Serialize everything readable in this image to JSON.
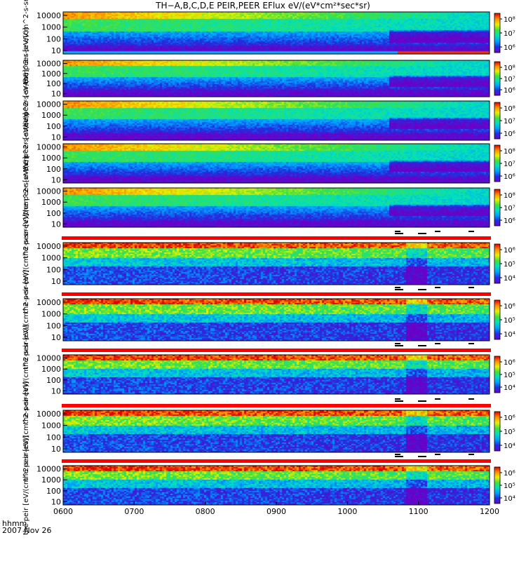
{
  "chart_data": {
    "type": "heatmap",
    "title": "TH−A,B,C,D,E PEIR,PEER EFlux eV/(eV*cm²*sec*sr)",
    "x_ticks": [
      "0600",
      "0700",
      "0800",
      "0900",
      "1000",
      "1100",
      "1200"
    ],
    "x_range": [
      "0600",
      "1200"
    ],
    "x_unit_label": "hhmm",
    "date_label": "2007 Nov 26",
    "y_scale": "log",
    "y_range": [
      5,
      20000
    ],
    "y_ticks": [
      10,
      100,
      1000,
      10000
    ],
    "y_tick_labels": [
      "10",
      "100",
      "1000",
      "10000"
    ],
    "colorbar_scale": "log",
    "panels": [
      {
        "name": "the peer",
        "ylabel": "the peer [eV/(cm^2-s-sr-eV)]",
        "cbar_ticks": [
          "10⁶",
          "10⁷",
          "10⁸"
        ]
      },
      {
        "name": "the peer",
        "ylabel": "the peer [eV/(cm^2-s-sr-eV)]",
        "cbar_ticks": [
          "10⁶",
          "10⁷",
          "10⁸"
        ]
      },
      {
        "name": "the peer",
        "ylabel": "the peer [eV/(cm^2-s-sr-eV)]",
        "cbar_ticks": [
          "10⁶",
          "10⁷",
          "10⁸"
        ]
      },
      {
        "name": "the peer",
        "ylabel": "the peer [eV/(cm^2-s-sr-eV)]",
        "cbar_ticks": [
          "10⁶",
          "10⁷",
          "10⁸"
        ]
      },
      {
        "name": "the peer",
        "ylabel": "the peer [eV/(cm^2-s-sr-eV)]",
        "cbar_ticks": [
          "10⁶",
          "10⁷",
          "10⁸"
        ]
      },
      {
        "name": "the peir",
        "ylabel": "the peir [eV/(cm^2-s-sr-eV)]",
        "cbar_ticks": [
          "10⁴",
          "10⁵",
          "10⁶"
        ]
      },
      {
        "name": "the peir",
        "ylabel": "the peir [eV/(cm^2-s-sr-eV)]",
        "cbar_ticks": [
          "10⁴",
          "10⁵",
          "10⁶"
        ]
      },
      {
        "name": "the peir",
        "ylabel": "the peir [eV/(cm^2-s-sr-eV)]",
        "cbar_ticks": [
          "10⁴",
          "10⁵",
          "10⁶"
        ]
      },
      {
        "name": "the peir",
        "ylabel": "the peir [eV/(cm^2-s-sr-eV)]",
        "cbar_ticks": [
          "10⁴",
          "10⁵",
          "10⁶"
        ]
      },
      {
        "name": "the peir",
        "ylabel": "the peir [eV/(cm^2-s-sr-eV)]",
        "cbar_ticks": [
          "10⁴",
          "10⁵",
          "10⁶"
        ]
      }
    ],
    "grid": false,
    "legend": "colorbar per panel (right)",
    "colors": {
      "colormap": [
        "#6b00c8",
        "#2030e0",
        "#00a0ff",
        "#00e0c0",
        "#40e040",
        "#e8f000",
        "#ff9000",
        "#e00000"
      ],
      "band_marker": "#ff0000"
    }
  }
}
